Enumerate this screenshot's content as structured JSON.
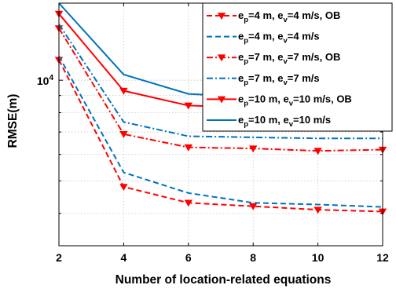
{
  "chart_data": {
    "type": "line",
    "xlabel": "Number of location-related equations",
    "ylabel": "RMSE(m)",
    "x": [
      2,
      4,
      6,
      8,
      10,
      12
    ],
    "xticks": [
      "2",
      "4",
      "6",
      "8",
      "10",
      "12"
    ],
    "xlim": [
      2,
      12
    ],
    "ylim": [
      3200,
      17000
    ],
    "yscale": "log",
    "ytick_label": {
      "base": "10",
      "exp": "4",
      "value": 10000
    },
    "grid": true,
    "legend_position": "top-right",
    "series": [
      {
        "name": "e_p=4 m, e_v=4 m/s, OB",
        "label": {
          "b1": "e",
          "s1": "p",
          "m1": "=4 m, ",
          "b2": "e",
          "s2": "v",
          "m2": "=4 m/s, OB"
        },
        "color": "#ff0000",
        "dash": "dashed",
        "marker": "triangle-down",
        "values": [
          11500,
          4800,
          4300,
          4200,
          4100,
          4050
        ]
      },
      {
        "name": "e_p=4 m, e_v=4 m/s",
        "label": {
          "b1": "e",
          "s1": "p",
          "m1": "=4 m, ",
          "b2": "e",
          "s2": "v",
          "m2": "=4 m/s"
        },
        "color": "#0072bd",
        "dash": "dashed",
        "marker": "none",
        "values": [
          11800,
          5300,
          4600,
          4300,
          4250,
          4180
        ]
      },
      {
        "name": "e_p=7 m, e_v=7 m/s, OB",
        "label": {
          "b1": "e",
          "s1": "p",
          "m1": "=7 m, ",
          "b2": "e",
          "s2": "v",
          "m2": "=7 m/s, OB"
        },
        "color": "#ff0000",
        "dash": "dashdot",
        "marker": "triangle-down",
        "values": [
          14300,
          6900,
          6300,
          6250,
          6150,
          6200
        ]
      },
      {
        "name": "e_p=7 m, e_v=7 m/s",
        "label": {
          "b1": "e",
          "s1": "p",
          "m1": "=7 m, ",
          "b2": "e",
          "s2": "v",
          "m2": "=7 m/s"
        },
        "color": "#0072bd",
        "dash": "dashdot",
        "marker": "none",
        "values": [
          14700,
          7500,
          6800,
          6750,
          6700,
          6700
        ]
      },
      {
        "name": "e_p=10 m, e_v=10 m/s, OB",
        "label": {
          "b1": "e",
          "s1": "p",
          "m1": "=10 m, ",
          "b2": "e",
          "s2": "v",
          "m2": "=10 m/s, OB"
        },
        "color": "#ff0000",
        "dash": "solid",
        "marker": "triangle-down",
        "values": [
          15800,
          9300,
          8400,
          8300,
          8200,
          7950
        ]
      },
      {
        "name": "e_p=10 m, e_v=10 m/s",
        "label": {
          "b1": "e",
          "s1": "p",
          "m1": "=10 m, ",
          "b2": "e",
          "s2": "v",
          "m2": "=10 m/s"
        },
        "color": "#0072bd",
        "dash": "solid",
        "marker": "none",
        "values": [
          17000,
          10400,
          9100,
          8900,
          8700,
          8550
        ]
      }
    ]
  }
}
